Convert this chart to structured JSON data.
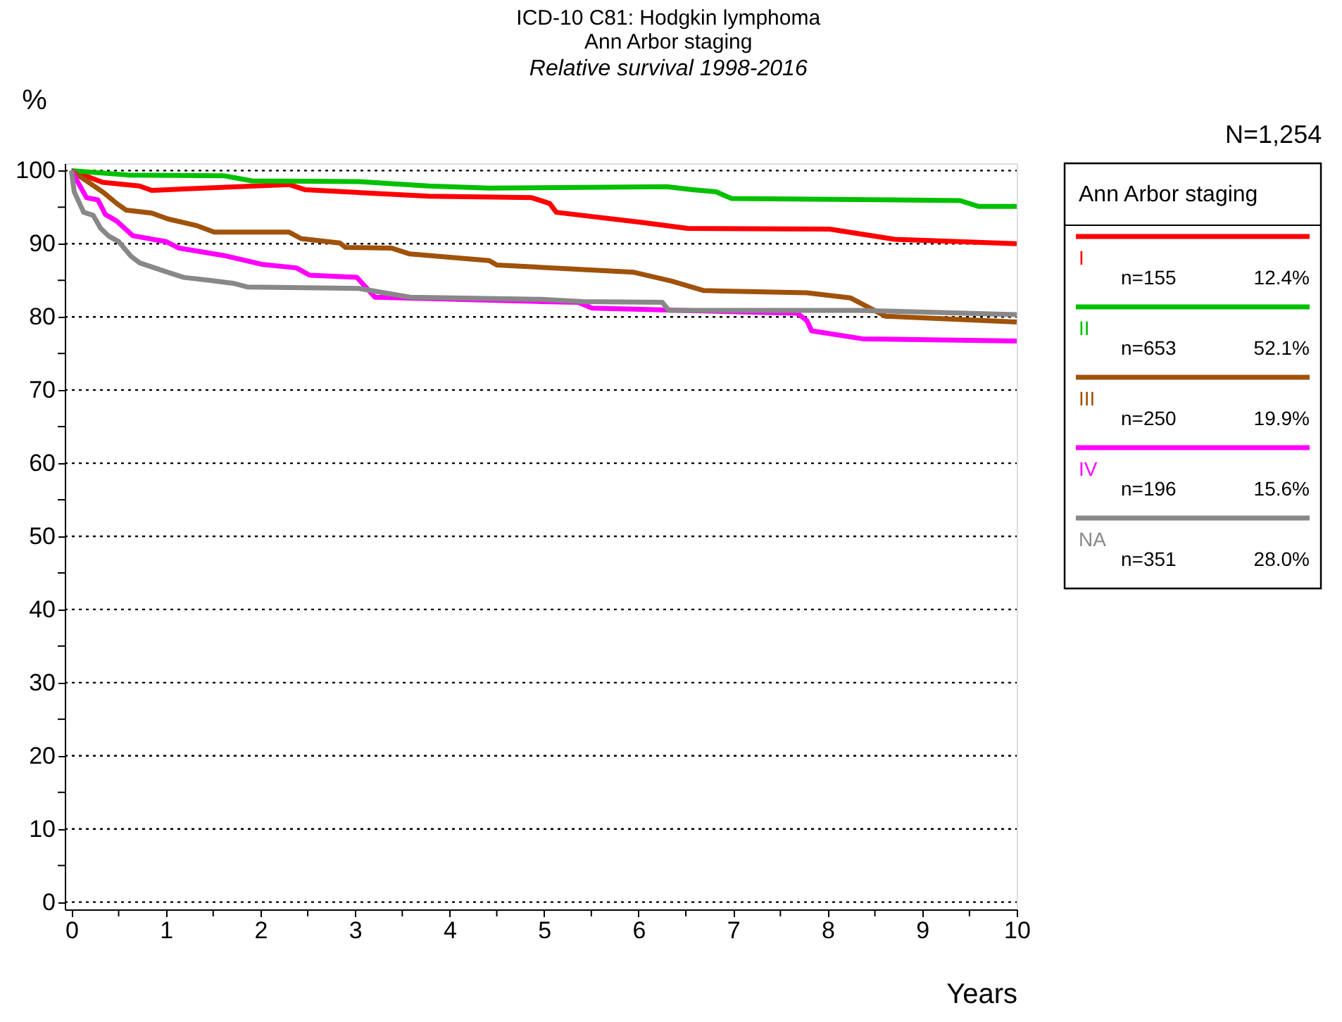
{
  "chart_data": {
    "type": "line",
    "title": [
      "ICD-10 C81: Hodgkin lymphoma",
      "Ann Arbor staging"
    ],
    "subtitle": "Relative survival 1998-2016",
    "xlabel": "Years",
    "ylabel": "%",
    "legend_title": "Ann Arbor staging",
    "legend": "right",
    "grid": "y",
    "line_style": "solid",
    "marker": "none",
    "annotations": [
      "N=1,254",
      "n=155",
      "12.4%",
      "n=653",
      "52.1%",
      "n=250",
      "19.9%",
      "n=196",
      "15.6%",
      "n=351",
      "28.0%"
    ],
    "xlim": [
      -0.07,
      10
    ],
    "ylim": [
      -1,
      101
    ],
    "xticks": [
      0,
      {
        "value": 0.5,
        "label": null
      },
      1,
      {
        "value": 1.5,
        "label": null
      },
      2,
      {
        "value": 2.5,
        "label": null
      },
      3,
      {
        "value": 3.5,
        "label": null
      },
      4,
      {
        "value": 4.5,
        "label": null
      },
      5,
      {
        "value": 5.5,
        "label": null
      },
      6,
      {
        "value": 6.5,
        "label": null
      },
      7,
      {
        "value": 7.5,
        "label": null
      },
      8,
      {
        "value": 8.5,
        "label": null
      },
      9,
      {
        "value": 9.5,
        "label": null
      },
      10
    ],
    "yticks": [
      0,
      {
        "value": 5,
        "label": null
      },
      10,
      {
        "value": 15,
        "label": null
      },
      20,
      {
        "value": 25,
        "label": null
      },
      30,
      {
        "value": 35,
        "label": null
      },
      40,
      {
        "value": 45,
        "label": null
      },
      50,
      {
        "value": 55,
        "label": null
      },
      60,
      {
        "value": 65,
        "label": null
      },
      70,
      {
        "value": 75,
        "label": null
      },
      80,
      {
        "value": 85,
        "label": null
      },
      90,
      {
        "value": 95,
        "label": null
      },
      100
    ],
    "series": [
      {
        "name": "I",
        "color": "#ff0000",
        "x": [
          0,
          0.33,
          0.72,
          0.85,
          2.3,
          2.47,
          3.78,
          4.87,
          5.06,
          5.13,
          6.05,
          6.52,
          8.02,
          8.71,
          10
        ],
        "values": [
          100,
          98.4,
          97.9,
          97.3,
          98.1,
          97.4,
          96.5,
          96.3,
          95.5,
          94.3,
          92.9,
          92.1,
          92.0,
          90.6,
          90.0
        ]
      },
      {
        "name": "II",
        "color": "#00c000",
        "x": [
          0,
          0.6,
          1.61,
          1.91,
          3.04,
          3.78,
          4.42,
          6.3,
          6.57,
          6.82,
          6.98,
          9.4,
          9.6,
          10
        ],
        "values": [
          100,
          99.4,
          99.3,
          98.6,
          98.5,
          97.9,
          97.6,
          97.8,
          97.4,
          97.1,
          96.2,
          95.9,
          95.1,
          95.1
        ]
      },
      {
        "name": "III",
        "color": "#a0520a",
        "x": [
          0,
          0.33,
          0.48,
          0.58,
          0.85,
          1.02,
          1.32,
          1.51,
          2.3,
          2.43,
          2.84,
          2.9,
          3.39,
          3.58,
          4.42,
          4.5,
          5.95,
          6.35,
          6.69,
          7.78,
          8.24,
          8.61,
          10
        ],
        "values": [
          100,
          97.1,
          95.5,
          94.6,
          94.2,
          93.4,
          92.5,
          91.6,
          91.6,
          90.7,
          90.1,
          89.5,
          89.4,
          88.6,
          87.7,
          87.1,
          86.1,
          84.9,
          83.6,
          83.3,
          82.6,
          80.1,
          79.3
        ]
      },
      {
        "name": "IV",
        "color": "#ff00ff",
        "x": [
          0,
          0.16,
          0.28,
          0.36,
          0.48,
          0.65,
          1.0,
          1.14,
          1.61,
          2.01,
          2.38,
          2.52,
          3.02,
          3.21,
          4.97,
          5.36,
          5.51,
          7.68,
          7.78,
          7.83,
          8.37,
          10
        ],
        "values": [
          100,
          96.3,
          96.0,
          94.0,
          93.1,
          91.1,
          90.3,
          89.4,
          88.4,
          87.2,
          86.7,
          85.7,
          85.4,
          82.7,
          82.1,
          82.0,
          81.2,
          80.5,
          79.5,
          78.1,
          77.0,
          76.7
        ]
      },
      {
        "name": "NA",
        "color": "#888888",
        "x": [
          0,
          0.03,
          0.13,
          0.23,
          0.31,
          0.4,
          0.5,
          0.63,
          0.72,
          1.02,
          1.19,
          1.46,
          1.71,
          1.86,
          3.04,
          3.58,
          4.97,
          5.41,
          6.25,
          6.32,
          8.32,
          10
        ],
        "values": [
          100,
          97.1,
          94.3,
          93.9,
          92.1,
          91.0,
          90.3,
          88.3,
          87.4,
          86.1,
          85.4,
          85.0,
          84.6,
          84.1,
          83.9,
          82.7,
          82.4,
          82.1,
          82.0,
          80.9,
          80.9,
          80.3
        ]
      }
    ]
  }
}
